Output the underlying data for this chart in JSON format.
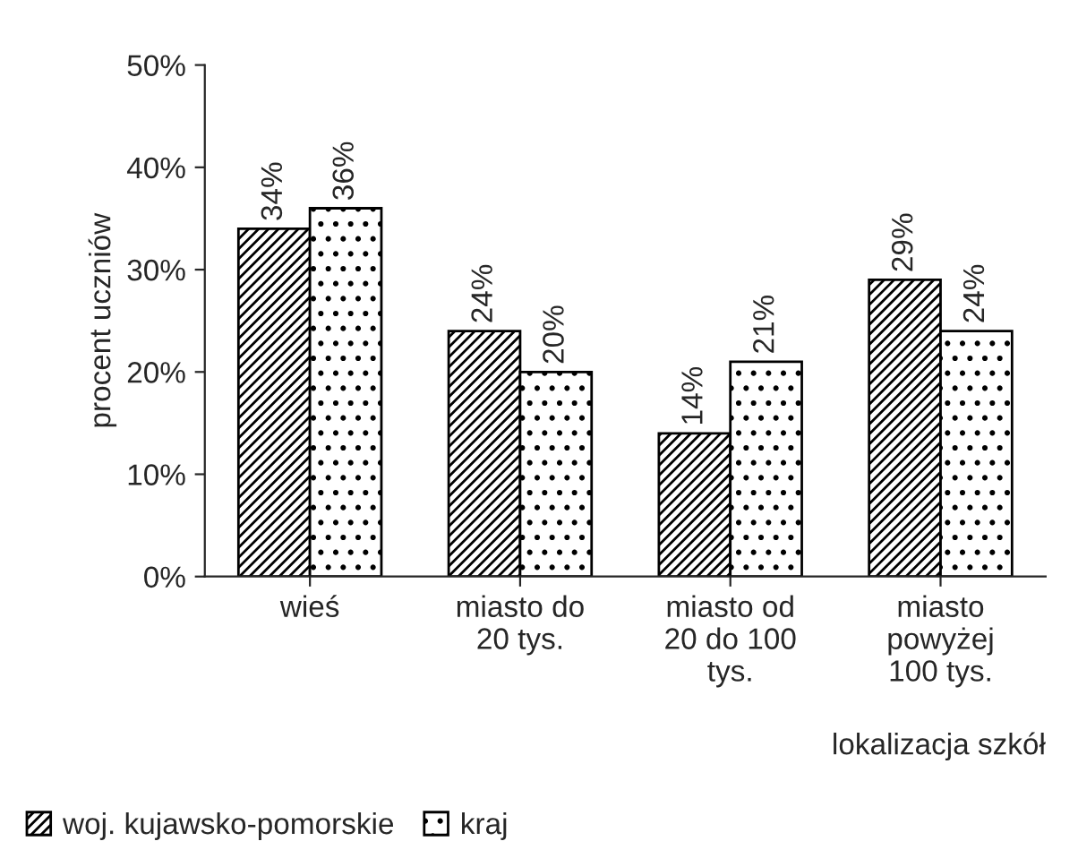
{
  "chart_data": {
    "type": "bar",
    "ylabel": "procent uczniów",
    "xlabel": "lokalizacja szkół",
    "categories": [
      "wieś",
      "miasto do\n20 tys.",
      "miasto od\n20 do 100\ntys.",
      "miasto\npowyżej\n100 tys."
    ],
    "series": [
      {
        "name": "woj. kujawsko-pomorskie",
        "color": "#000000",
        "values": [
          34,
          24,
          14,
          29
        ],
        "value_labels": [
          "34%",
          "24%",
          "14%",
          "29%"
        ]
      },
      {
        "name": "kraj",
        "color": "#000000",
        "values": [
          36,
          20,
          21,
          24
        ],
        "value_labels": [
          "36%",
          "20%",
          "21%",
          "24%"
        ]
      }
    ],
    "ylim": [
      0,
      50
    ],
    "yticks": [
      {
        "value": 0,
        "label": "0%"
      },
      {
        "value": 10,
        "label": "10%"
      },
      {
        "value": 20,
        "label": "20%"
      },
      {
        "value": 30,
        "label": "30%"
      },
      {
        "value": 40,
        "label": "40%"
      },
      {
        "value": 50,
        "label": "50%"
      }
    ],
    "grid": false,
    "legend": "bottom left"
  }
}
